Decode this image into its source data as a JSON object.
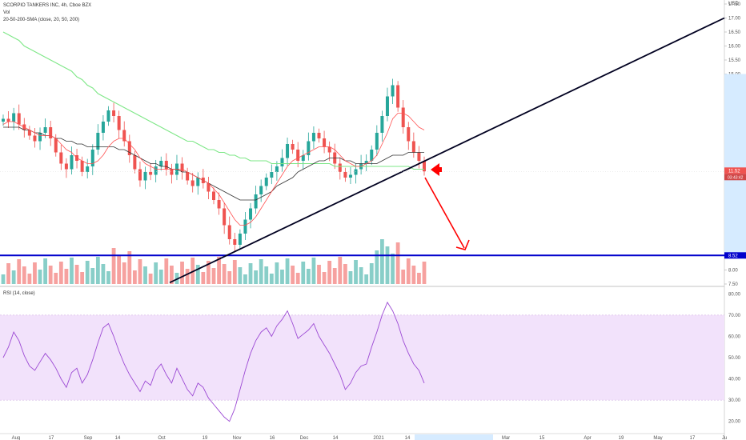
{
  "legend": {
    "symbol": "SCORPIO TANKERS INC, 4h, Cboe BZX",
    "vol": "Vol",
    "sma": "20-50-200-SMA (close, 20, 50, 200)",
    "rsi": "RSI (14, close)"
  },
  "currency": "USD",
  "colors": {
    "up": "#26a69a",
    "down": "#ef5350",
    "sma20": "#ff5252",
    "sma50": "#333333",
    "sma200": "#7ee787",
    "support": "#0000cc",
    "trend": "#000020",
    "arrow": "#ff0000",
    "rsi_line": "#9c4ad4",
    "rsi_band": "#f2e2fb"
  },
  "chart_data": [
    {
      "type": "candlestick",
      "panel": "price",
      "y_ticks": [
        "17.50",
        "17.00",
        "16.50",
        "16.00",
        "15.50",
        "15.00",
        "14.50",
        "14.00",
        "13.50",
        "13.00",
        "12.50",
        "12.00",
        "11.50",
        "11.00",
        "10.50",
        "10.00",
        "9.50",
        "9.00",
        "8.50",
        "8.00",
        "7.50"
      ],
      "ylim": [
        7.5,
        17.5
      ],
      "x_ticks": [
        "Aug",
        "17",
        "Sep",
        "14",
        "Oct",
        "19",
        "Nov",
        "16",
        "Dec",
        "14",
        "2021",
        "14",
        "Feb",
        "11",
        "Mar",
        "15",
        "Apr",
        "19",
        "May",
        "17",
        "Ju"
      ],
      "price_label": "11.52",
      "countdown_label": "03:43:42",
      "support_label": "8.52",
      "support_level": 8.52,
      "close_series": [
        13.4,
        13.3,
        13.6,
        13.2,
        13.0,
        12.8,
        12.6,
        12.9,
        13.1,
        12.7,
        12.2,
        11.8,
        11.6,
        12.1,
        11.9,
        11.5,
        11.7,
        12.3,
        12.9,
        13.3,
        13.7,
        13.5,
        13.0,
        12.6,
        12.1,
        11.6,
        11.2,
        11.5,
        11.4,
        11.7,
        11.9,
        11.6,
        11.4,
        11.8,
        11.5,
        11.2,
        11.0,
        11.3,
        11.1,
        10.8,
        10.5,
        10.2,
        9.6,
        9.1,
        8.9,
        9.3,
        9.8,
        10.2,
        10.7,
        11.0,
        11.3,
        11.5,
        11.7,
        12.0,
        12.5,
        12.3,
        11.9,
        12.1,
        12.6,
        12.9,
        12.7,
        12.4,
        12.2,
        11.8,
        11.5,
        11.3,
        11.4,
        11.6,
        11.8,
        11.9,
        12.3,
        12.9,
        13.5,
        14.2,
        14.6,
        13.8,
        13.1,
        12.6,
        12.2,
        11.9,
        11.52
      ],
      "sma20_series": [
        13.2,
        13.3,
        13.3,
        13.2,
        13.1,
        13.0,
        12.9,
        12.8,
        12.8,
        12.8,
        12.7,
        12.5,
        12.3,
        12.2,
        12.0,
        11.9,
        11.8,
        11.8,
        11.9,
        12.1,
        12.4,
        12.6,
        12.7,
        12.7,
        12.5,
        12.3,
        12.0,
        11.8,
        11.7,
        11.6,
        11.6,
        11.6,
        11.6,
        11.6,
        11.6,
        11.5,
        11.4,
        11.3,
        11.2,
        11.1,
        10.9,
        10.7,
        10.4,
        10.1,
        9.8,
        9.6,
        9.6,
        9.7,
        9.9,
        10.2,
        10.5,
        10.8,
        11.1,
        11.4,
        11.7,
        11.9,
        12.0,
        12.1,
        12.2,
        12.3,
        12.4,
        12.4,
        12.4,
        12.3,
        12.1,
        11.9,
        11.8,
        11.7,
        11.7,
        11.8,
        11.9,
        12.1,
        12.5,
        12.9,
        13.4,
        13.6,
        13.6,
        13.5,
        13.3,
        13.1,
        13.0
      ],
      "sma50_series": [
        13.1,
        13.1,
        13.1,
        13.1,
        13.0,
        13.0,
        12.9,
        12.9,
        12.8,
        12.8,
        12.7,
        12.7,
        12.6,
        12.6,
        12.5,
        12.5,
        12.4,
        12.4,
        12.4,
        12.4,
        12.4,
        12.4,
        12.3,
        12.3,
        12.2,
        12.1,
        12.0,
        11.9,
        11.8,
        11.8,
        11.7,
        11.7,
        11.6,
        11.6,
        11.5,
        11.5,
        11.4,
        11.3,
        11.2,
        11.1,
        11.0,
        10.9,
        10.8,
        10.7,
        10.6,
        10.5,
        10.5,
        10.5,
        10.5,
        10.6,
        10.7,
        10.8,
        11.0,
        11.1,
        11.2,
        11.3,
        11.5,
        11.6,
        11.7,
        11.8,
        11.9,
        11.9,
        12.0,
        12.0,
        12.0,
        11.9,
        11.9,
        11.8,
        11.8,
        11.8,
        11.8,
        11.8,
        11.9,
        12.0,
        12.1,
        12.1,
        12.1,
        12.2,
        12.2,
        12.2,
        12.2
      ],
      "sma200_series": [
        16.5,
        16.4,
        16.3,
        16.2,
        16.0,
        15.9,
        15.8,
        15.7,
        15.6,
        15.5,
        15.4,
        15.3,
        15.2,
        15.1,
        14.9,
        14.8,
        14.6,
        14.5,
        14.3,
        14.2,
        14.1,
        14.0,
        13.9,
        13.8,
        13.7,
        13.6,
        13.5,
        13.4,
        13.3,
        13.2,
        13.1,
        13.0,
        12.9,
        12.8,
        12.7,
        12.6,
        12.6,
        12.5,
        12.4,
        12.3,
        12.3,
        12.2,
        12.2,
        12.1,
        12.1,
        12.0,
        12.0,
        11.9,
        11.9,
        11.9,
        11.9,
        11.8,
        11.8,
        11.8,
        11.8,
        11.8,
        11.8,
        11.8,
        11.8,
        11.8,
        11.8,
        11.8,
        11.8,
        11.7,
        11.7,
        11.7,
        11.7,
        11.7,
        11.7,
        11.7,
        11.7,
        11.7,
        11.7,
        11.7,
        11.7,
        11.7,
        11.7,
        11.7,
        11.6,
        11.6,
        11.6
      ]
    },
    {
      "type": "line",
      "panel": "rsi",
      "y_ticks": [
        "80.00",
        "70.00",
        "60.00",
        "50.00",
        "40.00",
        "30.00",
        "20.00"
      ],
      "ylim": [
        15,
        82
      ],
      "band": [
        30,
        70
      ],
      "values": [
        50,
        55,
        62,
        58,
        51,
        46,
        44,
        48,
        52,
        49,
        45,
        40,
        36,
        43,
        45,
        38,
        42,
        49,
        57,
        64,
        66,
        60,
        53,
        47,
        42,
        38,
        34,
        39,
        37,
        44,
        47,
        42,
        38,
        45,
        40,
        35,
        32,
        38,
        36,
        31,
        28,
        25,
        22,
        20,
        26,
        35,
        44,
        52,
        58,
        62,
        64,
        60,
        65,
        68,
        72,
        66,
        59,
        61,
        63,
        66,
        60,
        56,
        52,
        47,
        42,
        35,
        38,
        43,
        46,
        47,
        55,
        62,
        70,
        76,
        72,
        66,
        58,
        52,
        47,
        44,
        38
      ]
    }
  ]
}
